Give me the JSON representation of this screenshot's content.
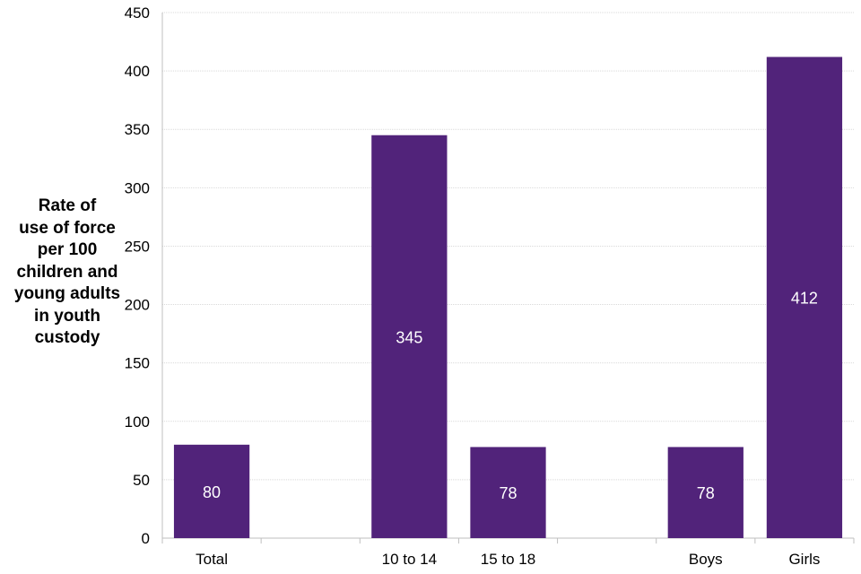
{
  "chart_data": {
    "type": "bar",
    "title": "",
    "xlabel": "",
    "ylabel_lines": [
      "Rate of",
      "use of force",
      "per 100",
      "children and",
      "young adults",
      "in youth",
      "custody"
    ],
    "categories": [
      "Total",
      "",
      "10 to 14",
      "15 to 18",
      "",
      "Boys",
      "Girls"
    ],
    "values": [
      80,
      null,
      345,
      78,
      null,
      78,
      412
    ],
    "data_labels": [
      "80",
      "",
      "345",
      "78",
      "",
      "78",
      "412"
    ],
    "ylim": [
      0,
      450
    ],
    "yticks": [
      0,
      50,
      100,
      150,
      200,
      250,
      300,
      350,
      400,
      450
    ],
    "grid": true,
    "bar_color": "#51237a",
    "label_color": "#ffffff"
  }
}
